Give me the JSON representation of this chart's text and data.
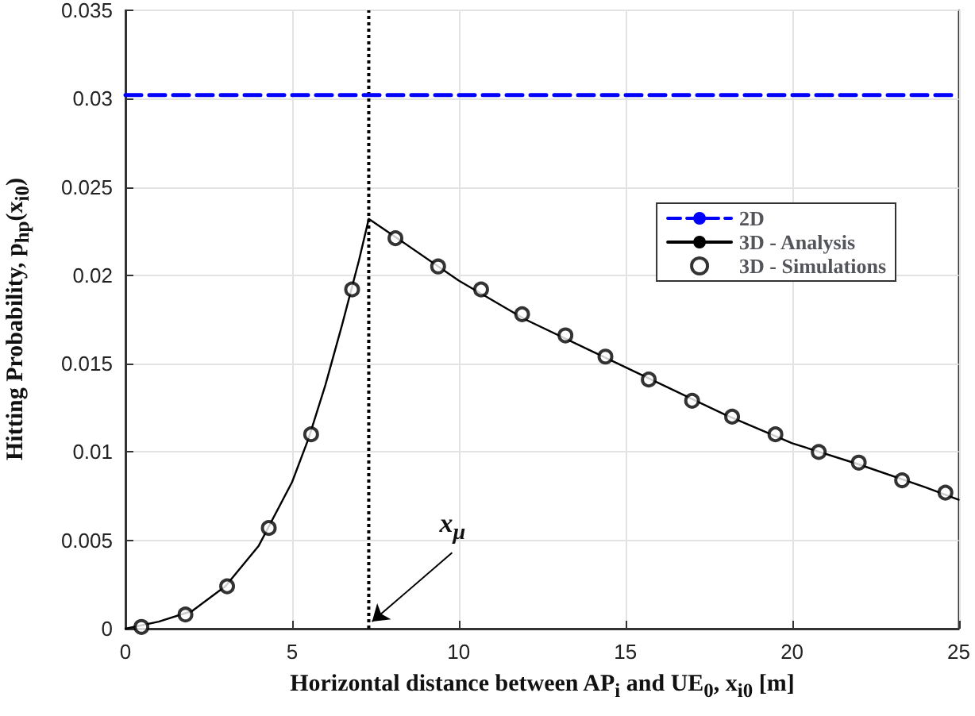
{
  "chart_data": {
    "type": "line",
    "xlabel": "Horizontal distance between AP$_{i}$ and UE$_{0}$, x$_{i0}$ [m]",
    "ylabel": "Hitting Probability, p$_{hp}$(x$_{i0}$)",
    "xlim": [
      0,
      25
    ],
    "xticks": [
      0,
      5,
      10,
      15,
      20,
      25
    ],
    "ylim": [
      0,
      0.035
    ],
    "yticks": [
      0,
      0.005,
      0.01,
      0.015,
      0.02,
      0.025,
      0.03,
      0.035
    ],
    "grid": true,
    "legend": "top right",
    "series": [
      {
        "name": "2D",
        "color": "#0000ff",
        "line_style": "dashed",
        "marker": "none",
        "x": [
          0,
          25
        ],
        "values": [
          0.0302,
          0.0302
        ]
      },
      {
        "name": "3D - Analysis",
        "color": "#000000",
        "line_style": "solid",
        "marker": "none",
        "x": [
          0,
          1,
          2,
          3,
          4,
          5,
          5.5,
          6,
          6.5,
          7,
          7.3,
          8,
          10,
          12,
          14,
          16,
          18,
          20,
          22,
          24,
          25
        ],
        "values": [
          0,
          0.0004,
          0.001,
          0.0024,
          0.0047,
          0.0083,
          0.0108,
          0.0138,
          0.0172,
          0.0208,
          0.0232,
          0.0223,
          0.0197,
          0.0175,
          0.0157,
          0.0139,
          0.0121,
          0.0105,
          0.0093,
          0.008,
          0.0073
        ]
      },
      {
        "name": "3D - Simulations",
        "type": "scatter",
        "color": "#000000",
        "marker": "circle",
        "x": [
          0.48,
          1.8,
          3.05,
          4.3,
          5.57,
          6.8,
          8.1,
          9.38,
          10.67,
          11.9,
          13.2,
          14.4,
          15.7,
          17.0,
          18.2,
          19.5,
          20.8,
          22.0,
          23.3,
          24.6
        ],
        "values": [
          0.0001,
          0.0008,
          0.0024,
          0.0057,
          0.011,
          0.0192,
          0.0221,
          0.0205,
          0.0192,
          0.0178,
          0.0166,
          0.0154,
          0.0141,
          0.0129,
          0.012,
          0.011,
          0.01,
          0.0094,
          0.0084,
          0.0077
        ]
      }
    ],
    "ref_lines": [
      {
        "axis": "x",
        "value": 7.3,
        "color": "#000000",
        "line_style": "dotted"
      }
    ],
    "annotations": [
      {
        "text": "x$_{μ}$",
        "x": 7.3,
        "y": 0
      }
    ]
  }
}
